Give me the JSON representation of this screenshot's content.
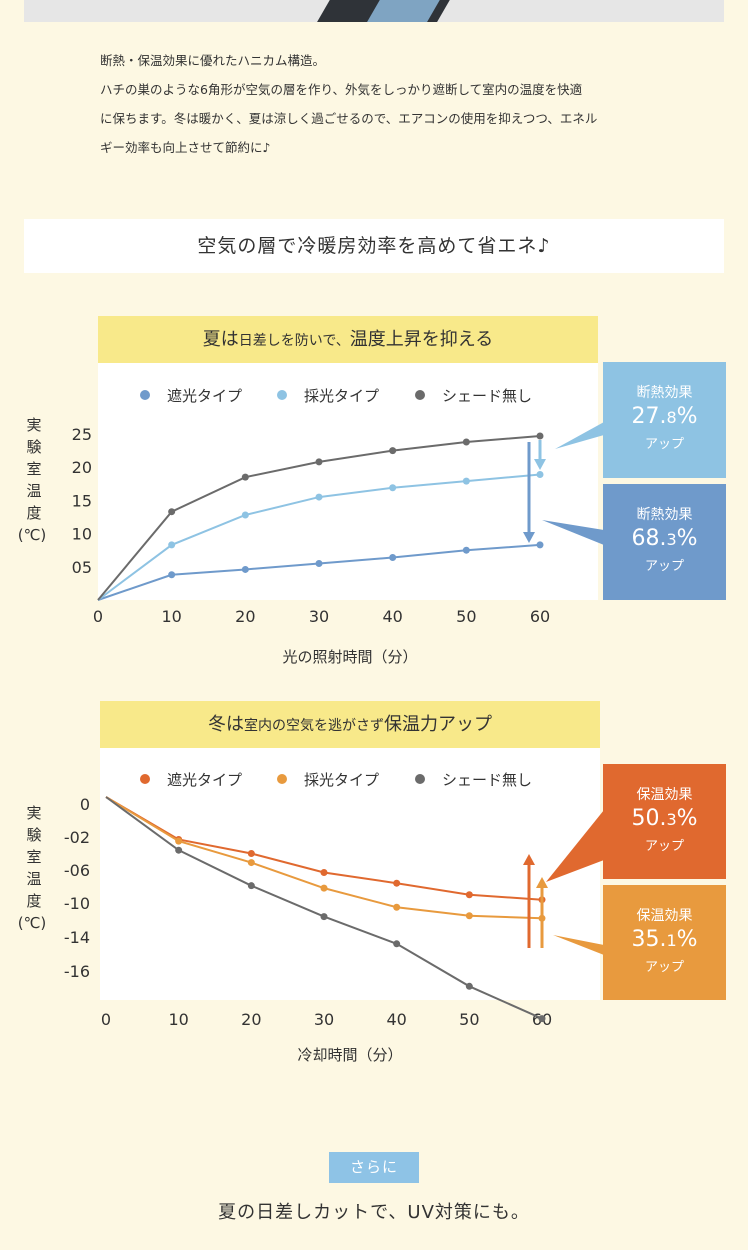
{
  "intro": {
    "line1": "断熱・保温効果に優れたハニカム構造。",
    "line2": "ハチの巣のような6角形が空気の層を作り、外気をしっかり遮断して室内の温度を快適",
    "line3": "に保ちます。冬は暖かく、夏は涼しく過ごせるので、エアコンの使用を抑えつつ、エネル",
    "line4": "ギー効率も向上させて節約に♪"
  },
  "banner": "空気の層で冷暖房効率を高めて省エネ♪",
  "chart_data": [
    {
      "type": "line",
      "title_big1": "夏は",
      "title_small": "日差しを防いで、",
      "title_big2": "温度上昇を抑える",
      "xlabel": "光の照射時間（分）",
      "ylabel": "実験室温度（℃）",
      "x": [
        0,
        10,
        20,
        30,
        40,
        50,
        60
      ],
      "x_tick_labels": [
        "0",
        "10",
        "20",
        "30",
        "40",
        "50",
        "60"
      ],
      "y_ticks": [
        5,
        10,
        15,
        20,
        25
      ],
      "y_tick_labels": [
        "05",
        "10",
        "15",
        "20",
        "25"
      ],
      "ylim": [
        0,
        25
      ],
      "legend_placement": "top",
      "series": [
        {
          "name": "遮光タイプ",
          "color": "#6f9acb",
          "values": [
            0,
            3.8,
            4.6,
            5.5,
            6.4,
            7.5,
            8.3
          ]
        },
        {
          "name": "採光タイプ",
          "color": "#8ec3e3",
          "values": [
            0,
            8.3,
            12.8,
            15.5,
            16.9,
            17.9,
            18.9
          ]
        },
        {
          "name": "シェード無し",
          "color": "#6b6b6b",
          "values": [
            0,
            13.3,
            18.5,
            20.8,
            22.5,
            23.8,
            24.7
          ]
        }
      ],
      "effects": [
        {
          "l1": "断熱効果",
          "num": "27.",
          "dec": "8",
          "pct": "%",
          "l3": "アップ",
          "color": "#8ec3e3"
        },
        {
          "l1": "断熱効果",
          "num": "68.",
          "dec": "3",
          "pct": "%",
          "l3": "アップ",
          "color": "#6f9acb"
        }
      ]
    },
    {
      "type": "line",
      "title_big1": "冬は",
      "title_small": "室内の空気を逃がさず",
      "title_big2": "保温力アップ",
      "xlabel": "冷却時間（分）",
      "ylabel": "実験室温度（℃）",
      "x": [
        0,
        10,
        20,
        30,
        40,
        50,
        60
      ],
      "x_tick_labels": [
        "0",
        "10",
        "20",
        "30",
        "40",
        "50",
        "60"
      ],
      "y_ticks": [
        0,
        -2,
        -6,
        -10,
        -14,
        -16
      ],
      "y_tick_labels": [
        "0",
        "-02",
        "-06",
        "-10",
        "-14",
        "-16"
      ],
      "legend_placement": "top",
      "series": [
        {
          "name": "遮光タイプ",
          "color": "#e0692f",
          "values": [
            0,
            -2.3,
            -4.0,
            -6.3,
            -7.6,
            -9.0,
            -9.6
          ]
        },
        {
          "name": "採光タイプ",
          "color": "#e89a3e",
          "values": [
            0,
            -2.5,
            -5.1,
            -8.2,
            -10.5,
            -11.5,
            -11.8
          ]
        },
        {
          "name": "シェード無し",
          "color": "#6b6b6b",
          "values": [
            0,
            -3.6,
            -7.9,
            -11.6,
            -14.4,
            -16.9,
            -18.8
          ]
        }
      ],
      "effects": [
        {
          "l1": "保温効果",
          "num": "50.",
          "dec": "3",
          "pct": "%",
          "l3": "アップ",
          "color": "#e0692f"
        },
        {
          "l1": "保温効果",
          "num": "35.",
          "dec": "1",
          "pct": "%",
          "l3": "アップ",
          "color": "#e89a3e"
        }
      ]
    }
  ],
  "sarani": "さらに",
  "bottom": "夏の日差しカットで、UV対策にも。"
}
